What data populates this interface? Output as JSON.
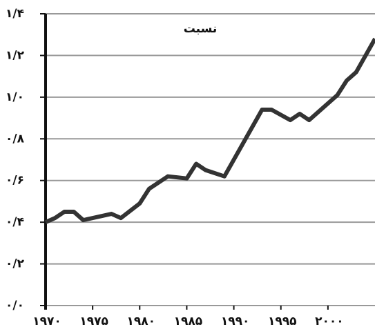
{
  "chart_data": {
    "type": "line",
    "title": "نسبت",
    "x": [
      1970,
      1971,
      1972,
      1973,
      1974,
      1977,
      1978,
      1980,
      1981,
      1983,
      1985,
      1986,
      1987,
      1989,
      1993,
      1994,
      1996,
      1997,
      1998,
      2001,
      2002,
      2003,
      2004,
      2005
    ],
    "series": [
      {
        "color": "#333333",
        "values": [
          0.4,
          0.42,
          0.45,
          0.45,
          0.41,
          0.44,
          0.42,
          0.49,
          0.56,
          0.62,
          0.61,
          0.68,
          0.65,
          0.62,
          0.94,
          0.94,
          0.89,
          0.92,
          0.89,
          1.01,
          1.08,
          1.12,
          1.2,
          1.28
        ]
      }
    ],
    "xlim": [
      1970,
      2005
    ],
    "xticks": [
      {
        "value": 1970,
        "label": "۱۹۷۰"
      },
      {
        "value": 1975,
        "label": "۱۹۷۵"
      },
      {
        "value": 1980,
        "label": "۱۹۸۰"
      },
      {
        "value": 1985,
        "label": "۱۹۸۵"
      },
      {
        "value": 1990,
        "label": "۱۹۹۰"
      },
      {
        "value": 1995,
        "label": "۱۹۹۵"
      },
      {
        "value": 2000,
        "label": "۲۰۰۰"
      }
    ],
    "ylim": [
      0,
      1.4
    ],
    "yticks": [
      {
        "value": 0,
        "label": "۰/۰"
      },
      {
        "value": 0.2,
        "label": "۰/۲"
      },
      {
        "value": 0.4,
        "label": "۰/۴"
      },
      {
        "value": 0.6,
        "label": "۰/۶"
      },
      {
        "value": 0.8,
        "label": "۰/۸"
      },
      {
        "value": 1.0,
        "label": "۱/۰"
      },
      {
        "value": 1.2,
        "label": "۱/۲"
      },
      {
        "value": 1.4,
        "label": "۱/۴"
      }
    ],
    "grid": true
  }
}
